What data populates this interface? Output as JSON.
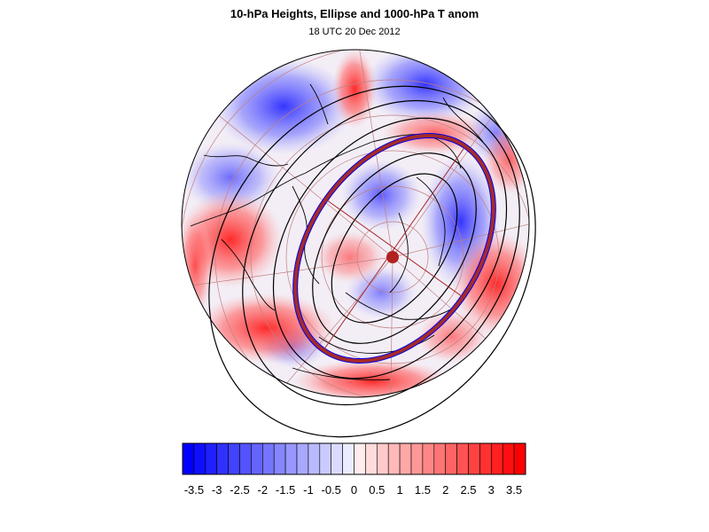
{
  "title": "10-hPa Heights, Ellipse and 1000-hPa T anom",
  "subtitle": "18 UTC 20 Dec 2012",
  "colors": {
    "negative": "#0000ff",
    "positive": "#ff0000",
    "ellipse": "#a52a2a",
    "ellipse_edge": "#0000ee",
    "contour": "#000000",
    "graticule": "#c08080"
  },
  "colorbar": {
    "labels": [
      "-3.5",
      "-3",
      "-2.5",
      "-2",
      "-1.5",
      "-1",
      "-0.5",
      "0",
      "0.5",
      "1",
      "1.5",
      "2",
      "2.5",
      "3",
      "3.5"
    ],
    "min": -3.75,
    "max": 3.75,
    "step": 0.25
  }
}
